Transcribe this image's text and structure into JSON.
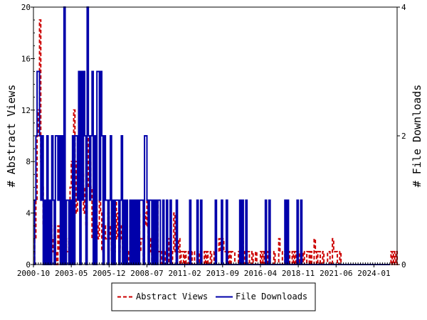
{
  "chart_data": {
    "type": "line",
    "title": "",
    "ylabel_left": "# Abstract Views",
    "ylabel_right": "# File Downloads",
    "x_tick_labels": [
      "2000-10",
      "2003-05",
      "2005-12",
      "2008-07",
      "2011-02",
      "2013-09",
      "2016-04",
      "2018-11",
      "2021-06",
      "2024-01"
    ],
    "x_tick_months": [
      0,
      31,
      62,
      93,
      124,
      155,
      186,
      217,
      248,
      279
    ],
    "x_range_months": [
      0,
      298
    ],
    "ylim_left": [
      0,
      20
    ],
    "yticks_left": [
      0,
      4,
      8,
      12,
      16,
      20
    ],
    "ylim_right": [
      0,
      4
    ],
    "yticks_right": [
      0,
      2,
      4
    ],
    "grid": false,
    "legend_position": "bottom-center",
    "series": [
      {
        "name": "Abstract Views",
        "axis": "left",
        "style": "dashed",
        "color": "#cc0000",
        "values": [
          0,
          2,
          5,
          10,
          12,
          19,
          8,
          6,
          3,
          4,
          2,
          5,
          5,
          4,
          3,
          2,
          1,
          3,
          1,
          0,
          3,
          1,
          3,
          2,
          1,
          3,
          2,
          1,
          1,
          2,
          6,
          8,
          7,
          12,
          8,
          4,
          5,
          6,
          5,
          9,
          7,
          4,
          6,
          3,
          6,
          10,
          8,
          6,
          2,
          3,
          1,
          5,
          3,
          2,
          5,
          4,
          1,
          3,
          3,
          2,
          2,
          4,
          3,
          2,
          1,
          3,
          1,
          5,
          2,
          4,
          1,
          3,
          2,
          1,
          3,
          2,
          1,
          0,
          1,
          3,
          2,
          2,
          1,
          2,
          1,
          3,
          4,
          1,
          2,
          2,
          0,
          4,
          3,
          5,
          2,
          1,
          2,
          0,
          3,
          1,
          0,
          5,
          1,
          1,
          0,
          1,
          1,
          0,
          1,
          1,
          2,
          0,
          1,
          0,
          1,
          4,
          1,
          0,
          1,
          2,
          0,
          1,
          1,
          0,
          1,
          0,
          0,
          1,
          1,
          0,
          1,
          1,
          0,
          0,
          1,
          0,
          1,
          1,
          0,
          0,
          1,
          0,
          1,
          0,
          0,
          1,
          0,
          0,
          1,
          2,
          1,
          1,
          2,
          1,
          1,
          2,
          1,
          1,
          1,
          0,
          1,
          0,
          1,
          1,
          1,
          0,
          0,
          0,
          1,
          0,
          0,
          2,
          1,
          0,
          0,
          1,
          1,
          0,
          0,
          1,
          0,
          0,
          1,
          0,
          0,
          0,
          1,
          0,
          1,
          0,
          0,
          1,
          0,
          1,
          0,
          0,
          0,
          1,
          0,
          0,
          0,
          2,
          1,
          1,
          0,
          0,
          1,
          1,
          0,
          1,
          0,
          0,
          1,
          0,
          1,
          0,
          0,
          1,
          0,
          0,
          0,
          1,
          0,
          0,
          1,
          1,
          0,
          1,
          0,
          0,
          2,
          1,
          0,
          1,
          1,
          0,
          0,
          1,
          0,
          0,
          0,
          1,
          1,
          0,
          0,
          2,
          1,
          1,
          1,
          0,
          0,
          1,
          0,
          0,
          0,
          0,
          0,
          0,
          0,
          0,
          0,
          0,
          0,
          0,
          0,
          0,
          0,
          0,
          0,
          0,
          0,
          0,
          0,
          0,
          0,
          0,
          0,
          0,
          0,
          0,
          0,
          0,
          0,
          0,
          0,
          0,
          0,
          0,
          0,
          0,
          0,
          0,
          0,
          1,
          0,
          1,
          0,
          1,
          0
        ]
      },
      {
        "name": "File Downloads",
        "axis": "right",
        "style": "solid",
        "color": "#0000aa",
        "values": [
          0,
          1,
          2,
          3,
          3,
          2,
          1,
          2,
          0,
          1,
          0,
          2,
          0,
          1,
          0,
          2,
          1,
          0,
          2,
          2,
          1,
          2,
          0,
          2,
          0,
          4,
          0,
          1,
          1,
          0,
          1,
          0,
          2,
          0,
          2,
          2,
          1,
          3,
          0,
          3,
          1,
          3,
          2,
          0,
          4,
          2,
          1,
          2,
          3,
          0,
          2,
          0,
          3,
          3,
          1,
          3,
          2,
          0,
          2,
          1,
          1,
          0,
          1,
          2,
          0,
          1,
          0,
          1,
          1,
          1,
          0,
          1,
          2,
          0,
          1,
          0,
          1,
          0,
          0,
          1,
          0,
          1,
          0,
          1,
          0,
          1,
          0,
          1,
          1,
          1,
          0,
          2,
          2,
          1,
          0,
          1,
          1,
          0,
          1,
          0,
          1,
          0,
          1,
          1,
          0,
          0,
          1,
          0,
          0,
          1,
          0,
          0,
          1,
          0,
          0,
          0,
          0,
          1,
          0,
          0,
          0,
          0,
          0,
          0,
          0,
          0,
          0,
          0,
          1,
          0,
          0,
          0,
          0,
          0,
          1,
          0,
          0,
          1,
          0,
          0,
          0,
          0,
          0,
          0,
          0,
          0,
          0,
          0,
          0,
          1,
          0,
          0,
          0,
          0,
          1,
          0,
          0,
          0,
          1,
          0,
          0,
          0,
          0,
          0,
          0,
          0,
          0,
          0,
          0,
          1,
          0,
          1,
          0,
          0,
          1,
          0,
          0,
          0,
          0,
          0,
          0,
          0,
          0,
          0,
          0,
          0,
          0,
          0,
          0,
          0,
          1,
          0,
          0,
          1,
          0,
          0,
          0,
          0,
          0,
          0,
          0,
          0,
          0,
          0,
          0,
          0,
          1,
          0,
          1,
          0,
          0,
          0,
          0,
          0,
          0,
          0,
          1,
          0,
          0,
          1,
          0,
          0,
          0,
          0,
          0,
          0,
          0,
          0,
          0,
          0,
          0,
          0,
          0,
          0,
          0,
          0,
          0,
          0,
          0,
          0,
          0,
          0,
          0,
          0,
          0,
          0,
          0,
          0,
          0,
          0,
          0,
          0,
          0,
          0,
          0,
          0,
          0,
          0,
          0,
          0,
          0,
          0,
          0,
          0,
          0,
          0,
          0,
          0,
          0,
          0,
          0,
          0,
          0,
          0,
          0,
          0,
          0,
          0,
          0,
          0,
          0,
          0,
          0,
          0,
          0,
          0,
          0,
          0,
          0,
          0,
          0,
          0
        ]
      }
    ]
  }
}
